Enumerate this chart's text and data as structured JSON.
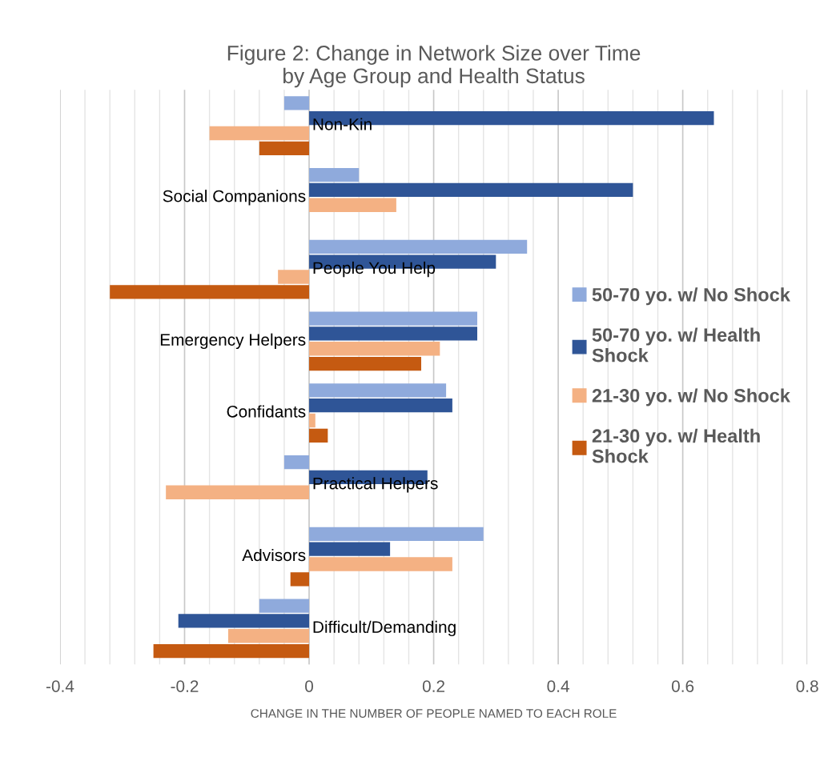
{
  "chart_data": {
    "type": "bar",
    "orientation": "horizontal",
    "title": "Figure 2: Change in Network Size over Time\nby Age Group and Health Status",
    "xlabel": "CHANGE IN THE NUMBER OF PEOPLE NAMED TO EACH ROLE",
    "categories": [
      "Non-Kin",
      "Social Companions",
      "People You Help",
      "Emergency Helpers",
      "Confidants",
      "Practical Helpers",
      "Advisors",
      "Difficult/Demanding"
    ],
    "series": [
      {
        "name": "50-70 yo. w/ No Shock",
        "color": "#8faadc",
        "values": [
          -0.04,
          0.08,
          0.35,
          0.27,
          0.22,
          -0.04,
          0.28,
          -0.08
        ]
      },
      {
        "name": "50-70 yo. w/ Health Shock",
        "color": "#2f5597",
        "values": [
          0.65,
          0.52,
          0.3,
          0.27,
          0.23,
          0.19,
          0.13,
          -0.21
        ]
      },
      {
        "name": "21-30 yo. w/ No Shock",
        "color": "#f4b183",
        "values": [
          -0.16,
          0.14,
          -0.05,
          0.21,
          0.01,
          -0.23,
          0.23,
          -0.13
        ]
      },
      {
        "name": "21-30 yo. w/ Health Shock",
        "color": "#c55a11",
        "values": [
          -0.08,
          null,
          -0.32,
          0.18,
          0.03,
          null,
          -0.03,
          -0.25
        ]
      }
    ],
    "xlim": [
      -0.4,
      0.8
    ],
    "xticks": [
      -0.4,
      -0.2,
      0,
      0.2,
      0.4,
      0.6,
      0.8
    ],
    "grid": "x",
    "legend": "right"
  }
}
